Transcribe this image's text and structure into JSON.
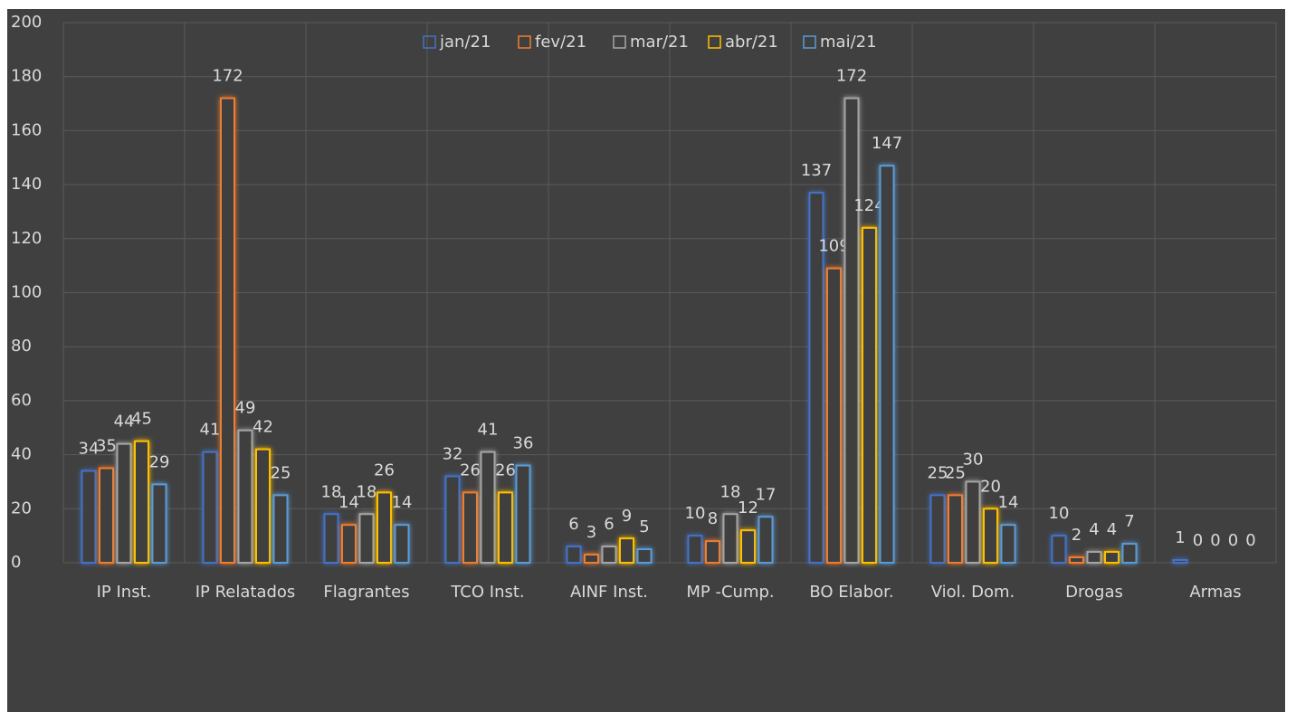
{
  "chart_data": {
    "type": "bar",
    "categories": [
      "IP Inst.",
      "IP Relatados",
      "Flagrantes",
      "TCO Inst.",
      "AINF Inst.",
      "MP -Cump.",
      "BO Elabor.",
      "Viol. Dom.",
      "Drogas",
      "Armas"
    ],
    "series": [
      {
        "name": "jan/21",
        "color": "#4472c4",
        "values": [
          34,
          41,
          18,
          32,
          6,
          10,
          137,
          25,
          10,
          1
        ]
      },
      {
        "name": "fev/21",
        "color": "#ed7d31",
        "values": [
          35,
          172,
          14,
          26,
          3,
          8,
          109,
          25,
          2,
          0
        ]
      },
      {
        "name": "mar/21",
        "color": "#a5a5a5",
        "values": [
          44,
          49,
          18,
          41,
          6,
          18,
          172,
          30,
          4,
          0
        ]
      },
      {
        "name": "abr/21",
        "color": "#ffc000",
        "values": [
          45,
          42,
          26,
          26,
          9,
          12,
          124,
          20,
          4,
          0
        ]
      },
      {
        "name": "mai/21",
        "color": "#5b9bd5",
        "values": [
          29,
          25,
          14,
          36,
          5,
          17,
          147,
          14,
          7,
          0
        ]
      }
    ],
    "ylim": [
      0,
      200
    ],
    "yticks": [
      0,
      20,
      40,
      60,
      80,
      100,
      120,
      140,
      160,
      180,
      200
    ],
    "grid": true,
    "legend": "top"
  }
}
